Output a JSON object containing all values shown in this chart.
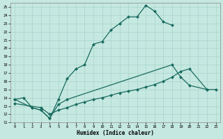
{
  "xlabel": "Humidex (Indice chaleur)",
  "bg_color": "#c5e8e0",
  "grid_color": "#a8d4cc",
  "line_color": "#1a6b60",
  "xlim": [
    -0.5,
    23.5
  ],
  "ylim": [
    11,
    25.5
  ],
  "ytick_min": 11,
  "ytick_max": 25,
  "xtick_min": 0,
  "xtick_max": 23,
  "line1_x": [
    0,
    1,
    2,
    3,
    4,
    5,
    6,
    7,
    8,
    9,
    10,
    11,
    12,
    13,
    14,
    15,
    16,
    17,
    18
  ],
  "line1_y": [
    13.8,
    14.0,
    12.8,
    12.5,
    11.5,
    13.8,
    16.3,
    17.5,
    18.0,
    20.5,
    20.8,
    22.2,
    23.0,
    23.8,
    23.8,
    25.2,
    24.5,
    23.2,
    22.8
  ],
  "line2_x": [
    0,
    2,
    3,
    4,
    5,
    6,
    18,
    19,
    20,
    22
  ],
  "line2_y": [
    13.8,
    12.8,
    12.5,
    11.5,
    13.2,
    13.8,
    18.0,
    16.5,
    15.5,
    15.0
  ],
  "line3_x": [
    0,
    3,
    4,
    5,
    6,
    7,
    8,
    9,
    10,
    11,
    12,
    13,
    14,
    15,
    16,
    17,
    18,
    19,
    20,
    22,
    23
  ],
  "line3_y": [
    13.3,
    12.8,
    12.0,
    12.5,
    12.8,
    13.2,
    13.5,
    13.8,
    14.0,
    14.3,
    14.6,
    14.8,
    15.0,
    15.3,
    15.6,
    16.0,
    16.5,
    17.2,
    17.5,
    15.0,
    15.0
  ]
}
